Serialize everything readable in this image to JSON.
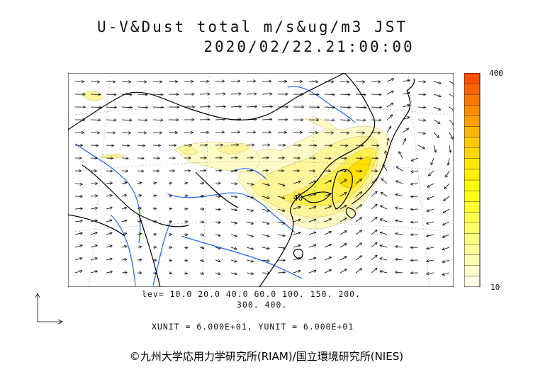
{
  "title": {
    "line1": "U-V&Dust total m/s&ug/m3 JST",
    "line2": "2020/02/22.21:00:00"
  },
  "levels": {
    "line1": "lev= 10.0 20.0 40.0 60.0 100. 150. 200.",
    "line2": "300. 400."
  },
  "units_text": "XUNIT = 6.000E+01, YUNIT = 6.000E+01",
  "contour_label": "40",
  "colorbar": {
    "max_label": "400",
    "min_label": "10",
    "colors": [
      "#ffffe6",
      "#ffffcc",
      "#ffffb3",
      "#ffff99",
      "#ffff80",
      "#ffff66",
      "#ffff4d",
      "#ffff33",
      "#ffff1a",
      "#ffff00",
      "#fff000",
      "#ffe600",
      "#ffd700",
      "#ffc800",
      "#ffb400",
      "#ffa000",
      "#ff8c00",
      "#ff7800",
      "#ff6400",
      "#ff5000"
    ]
  },
  "footer": "©九州大学応用力学研究所(RIAM)/国立環境研究所(NIES)",
  "colors": {
    "coast": "#000000",
    "river": "#1e64ff",
    "dust": "#f0e000"
  }
}
